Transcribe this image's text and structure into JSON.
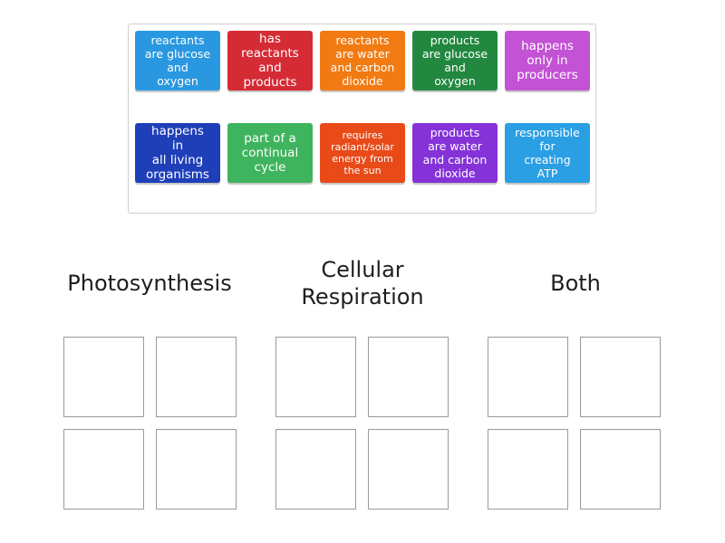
{
  "cards": [
    {
      "text": "reactants\nare glucose\nand\noxygen",
      "color": "#2a98e0"
    },
    {
      "text": "has\nreactants\nand\nproducts",
      "color": "#d52b35"
    },
    {
      "text": "reactants\nare water\nand carbon\ndioxide",
      "color": "#f27a12"
    },
    {
      "text": "products\nare glucose\nand\noxygen",
      "color": "#22883f"
    },
    {
      "text": "happens\nonly in\nproducers",
      "color": "#c352d5"
    },
    {
      "text": "happens\nin\nall living\norganisms",
      "color": "#1e3fb8"
    },
    {
      "text": "part of a\ncontinual\ncycle",
      "color": "#3fb45e"
    },
    {
      "text": "requires\nradiant/solar\nenergy from\nthe sun",
      "color": "#e84a18"
    },
    {
      "text": "products\nare water\nand carbon\ndioxide",
      "color": "#8533d8"
    },
    {
      "text": "responsible\nfor\ncreating\nATP",
      "color": "#2a9fe3"
    }
  ],
  "categories": [
    {
      "label": "Photosynthesis"
    },
    {
      "label": "Cellular\nRespiration"
    },
    {
      "label": "Both"
    }
  ]
}
